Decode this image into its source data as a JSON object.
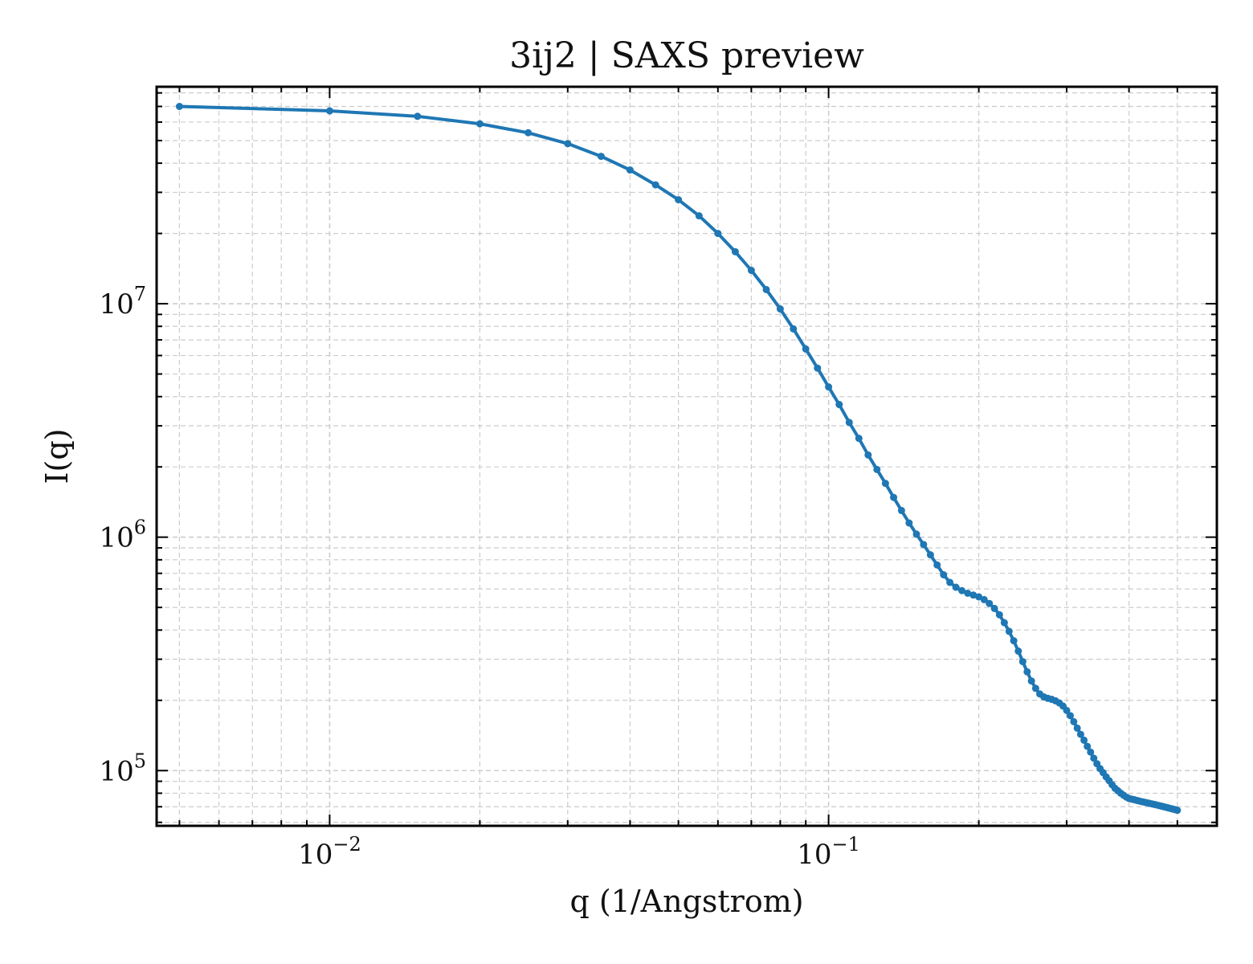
{
  "chart_data": {
    "type": "line",
    "title": "3ij2 | SAXS preview",
    "xlabel": "q (1/Angstrom)",
    "ylabel": "I(q)",
    "xscale": "log",
    "yscale": "log",
    "xlim": [
      0.0045,
      0.6
    ],
    "ylim": [
      58000,
      85000000
    ],
    "grid": true,
    "x_ticks": [
      {
        "value": 0.01,
        "base": "10",
        "exp": "−2"
      },
      {
        "value": 0.1,
        "base": "10",
        "exp": "−1"
      }
    ],
    "y_ticks": [
      {
        "value": 100000,
        "base": "10",
        "exp": "5"
      },
      {
        "value": 1000000,
        "base": "10",
        "exp": "6"
      },
      {
        "value": 10000000,
        "base": "10",
        "exp": "7"
      }
    ],
    "series": [
      {
        "color": "#1f77b4",
        "x": [
          0.005,
          0.01,
          0.015,
          0.02,
          0.025,
          0.03,
          0.035,
          0.04,
          0.045,
          0.05,
          0.055,
          0.06,
          0.065,
          0.07,
          0.075,
          0.08,
          0.085,
          0.09,
          0.095,
          0.1,
          0.105,
          0.11,
          0.115,
          0.12,
          0.125,
          0.13,
          0.135,
          0.14,
          0.145,
          0.15,
          0.155,
          0.16,
          0.165,
          0.17,
          0.175,
          0.18,
          0.185,
          0.19,
          0.195,
          0.2,
          0.205,
          0.21,
          0.215,
          0.22,
          0.225,
          0.23,
          0.235,
          0.24,
          0.245,
          0.25,
          0.255,
          0.26,
          0.265,
          0.27,
          0.275,
          0.28,
          0.285,
          0.29,
          0.295,
          0.3,
          0.305,
          0.31,
          0.315,
          0.32,
          0.325,
          0.33,
          0.335,
          0.34,
          0.345,
          0.35,
          0.355,
          0.36,
          0.365,
          0.37,
          0.375,
          0.38,
          0.385,
          0.39,
          0.395,
          0.4,
          0.405,
          0.41,
          0.415,
          0.42,
          0.425,
          0.43,
          0.435,
          0.44,
          0.445,
          0.45,
          0.455,
          0.46,
          0.465,
          0.47,
          0.475,
          0.48,
          0.485,
          0.49,
          0.495,
          0.5
        ],
        "y": [
          70000000,
          67000000,
          63500000,
          59000000,
          54000000,
          48500000,
          42800000,
          37400000,
          32300000,
          27900000,
          23800000,
          20000000,
          16700000,
          13900000,
          11500000,
          9500000,
          7800000,
          6400000,
          5300000,
          4400000,
          3700000,
          3100000,
          2650000,
          2250000,
          1950000,
          1700000,
          1480000,
          1300000,
          1150000,
          1030000,
          930000,
          840000,
          760000,
          690000,
          640000,
          610000,
          590000,
          575000,
          565000,
          555000,
          540000,
          520000,
          495000,
          465000,
          430000,
          395000,
          360000,
          325000,
          293000,
          265000,
          242000,
          225000,
          213000,
          207000,
          204000,
          202000,
          199000,
          195000,
          189000,
          181000,
          172000,
          162000,
          152000,
          143000,
          135000,
          127000,
          120000,
          113000,
          107000,
          102000,
          98000,
          94000,
          90500,
          87000,
          84000,
          82000,
          80000,
          78500,
          77000,
          76000,
          75500,
          75000,
          74500,
          74000,
          73600,
          73200,
          72800,
          72400,
          72000,
          71600,
          71200,
          70800,
          70400,
          70000,
          69600,
          69200,
          68800,
          68400,
          68000,
          67600
        ]
      }
    ]
  }
}
